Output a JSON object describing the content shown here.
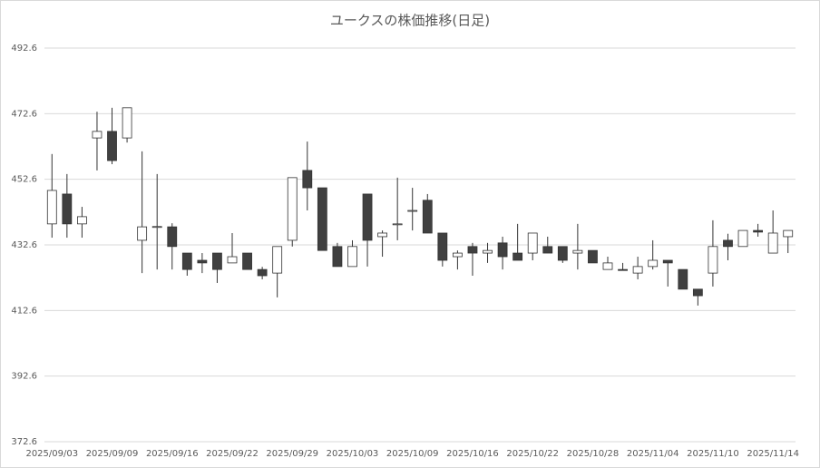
{
  "chart_data": {
    "type": "candlestick",
    "title": "ユークスの株価推移(日足)",
    "categories": [
      "2025/09/03",
      null,
      null,
      null,
      "2025/09/09",
      null,
      null,
      null,
      "2025/09/16",
      null,
      null,
      null,
      "2025/09/22",
      null,
      null,
      null,
      "2025/09/29",
      null,
      null,
      null,
      "2025/10/03",
      null,
      null,
      null,
      "2025/10/09",
      null,
      null,
      null,
      "2025/10/16",
      null,
      null,
      null,
      "2025/10/22",
      null,
      null,
      null,
      "2025/10/28",
      null,
      null,
      null,
      "2025/11/04",
      null,
      null,
      null,
      "2025/11/10",
      null,
      null,
      null,
      "2025/11/14",
      null
    ],
    "open": [
      439.0,
      448.1,
      439.0,
      465.2,
      467.2,
      465.2,
      434.0,
      438.1,
      438.1,
      430.1,
      427.9,
      430.1,
      427.1,
      430.1,
      425.1,
      424.0,
      434.0,
      455.3,
      450.0,
      432.1,
      426.0,
      448.1,
      435.1,
      438.8,
      443.0,
      446.2,
      436.2,
      429.0,
      432.1,
      430.1,
      433.2,
      430.1,
      430.1,
      432.1,
      432.1,
      430.1,
      430.9,
      425.1,
      425.1,
      424.0,
      426.0,
      427.9,
      425.1,
      419.1,
      424.0,
      434.0,
      432.1,
      437.0,
      430.1,
      435.1
    ],
    "high": [
      460.3,
      454.2,
      444.2,
      473.2,
      474.4,
      474.4,
      461.1,
      454.2,
      439.2,
      430.1,
      430.1,
      430.1,
      436.2,
      430.1,
      425.9,
      432.1,
      453.1,
      464.1,
      450.0,
      433.2,
      434.0,
      448.1,
      437.0,
      453.1,
      450.0,
      448.1,
      436.2,
      430.9,
      433.2,
      433.2,
      435.1,
      439.0,
      436.2,
      435.1,
      432.1,
      439.0,
      430.9,
      429.0,
      427.1,
      429.0,
      434.0,
      427.9,
      425.1,
      419.1,
      440.1,
      436.0,
      437.0,
      439.0,
      443.1,
      437.0
    ],
    "low": [
      434.8,
      434.8,
      434.8,
      455.3,
      457.2,
      463.8,
      424.0,
      425.1,
      425.1,
      423.2,
      424.0,
      421.0,
      427.1,
      425.1,
      422.1,
      416.6,
      432.1,
      443.1,
      430.9,
      426.0,
      426.0,
      426.0,
      429.0,
      434.0,
      437.0,
      436.2,
      426.0,
      425.1,
      423.2,
      427.1,
      425.1,
      427.9,
      427.9,
      430.1,
      427.1,
      425.1,
      427.1,
      425.1,
      424.8,
      422.1,
      425.1,
      419.9,
      419.1,
      414.1,
      419.9,
      427.9,
      432.1,
      435.1,
      430.1,
      430.1
    ],
    "close": [
      449.2,
      439.0,
      441.2,
      467.2,
      458.3,
      474.4,
      438.1,
      438.2,
      432.1,
      425.1,
      427.1,
      425.1,
      429.0,
      425.1,
      423.2,
      432.1,
      453.1,
      450.0,
      430.9,
      426.0,
      432.1,
      434.0,
      436.2,
      439.0,
      443.1,
      436.2,
      427.9,
      430.1,
      430.1,
      430.9,
      429.0,
      427.9,
      436.2,
      430.1,
      427.9,
      430.9,
      427.1,
      427.1,
      424.8,
      426.0,
      427.9,
      427.1,
      419.1,
      417.1,
      432.1,
      432.1,
      437.0,
      436.5,
      436.2,
      437.0
    ],
    "up_color": "#ffffff",
    "down_color": "#404040",
    "ylim": [
      372.6,
      492.6
    ],
    "yticks": [
      372.6,
      392.6,
      412.6,
      432.6,
      452.6,
      472.6,
      492.6
    ],
    "grid": true
  }
}
